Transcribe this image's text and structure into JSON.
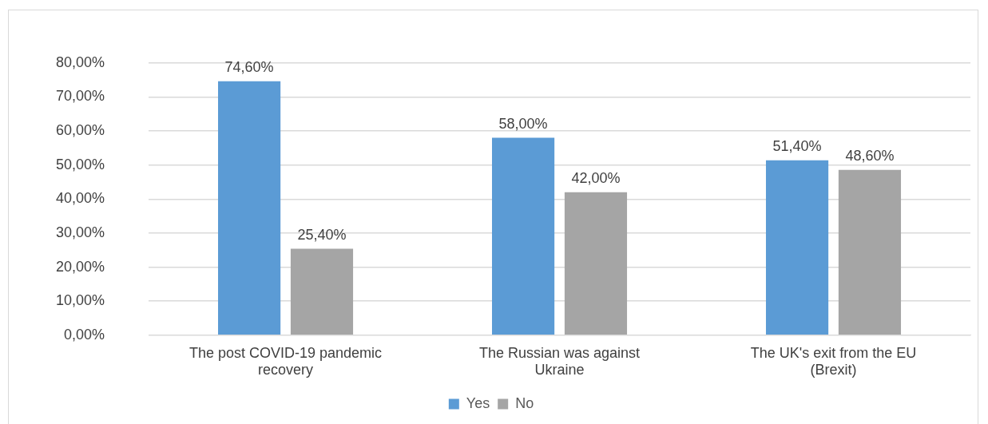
{
  "chart_data": {
    "type": "bar",
    "categories": [
      "The post COVID-19 pandemic recovery",
      "The Russian was against Ukraine",
      "The UK's exit from the EU (Brexit)"
    ],
    "series": [
      {
        "name": "Yes",
        "color": "#5b9bd5",
        "values": [
          74.6,
          58.0,
          51.4
        ],
        "value_labels": [
          "74,60%",
          "58,00%",
          "51,40%"
        ]
      },
      {
        "name": "No",
        "color": "#a5a5a5",
        "values": [
          25.4,
          42.0,
          48.6
        ],
        "value_labels": [
          "25,40%",
          "42,00%",
          "48,60%"
        ]
      }
    ],
    "ylim": [
      0,
      80
    ],
    "yticks": [
      {
        "value": 0,
        "label": "0,00%"
      },
      {
        "value": 10,
        "label": "10,00%"
      },
      {
        "value": 20,
        "label": "20,00%"
      },
      {
        "value": 30,
        "label": "30,00%"
      },
      {
        "value": 40,
        "label": "40,00%"
      },
      {
        "value": 50,
        "label": "50,00%"
      },
      {
        "value": 60,
        "label": "60,00%"
      },
      {
        "value": 70,
        "label": "70,00%"
      },
      {
        "value": 80,
        "label": "80,00%"
      }
    ],
    "grid": "y",
    "legend": "bottom"
  }
}
